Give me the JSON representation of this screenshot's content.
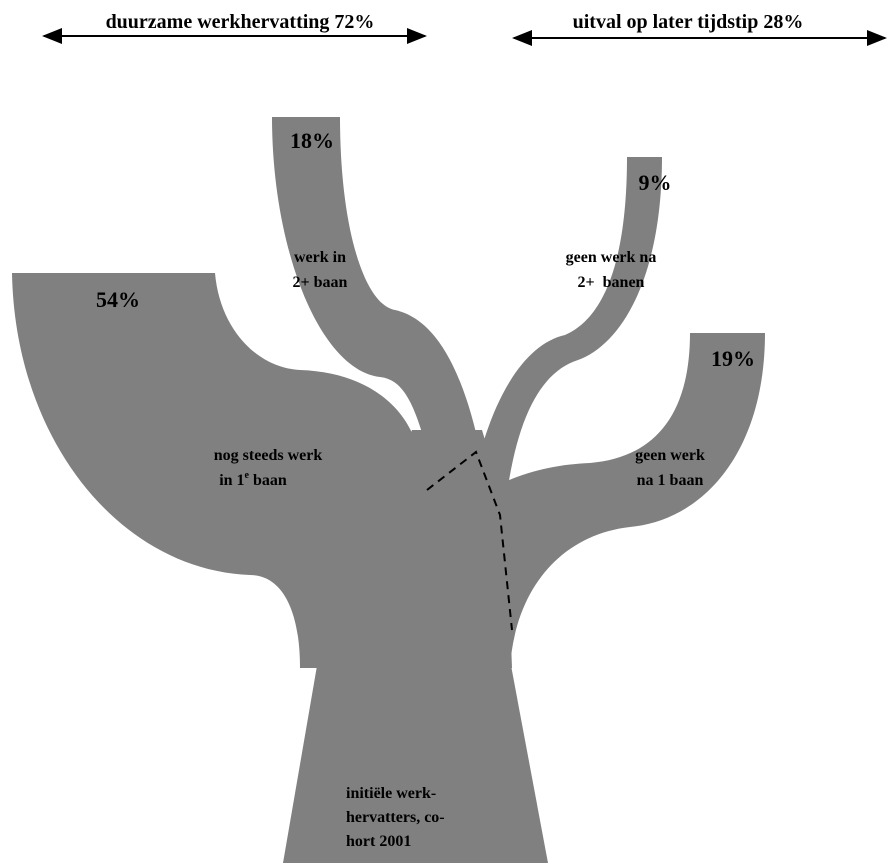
{
  "header": {
    "left": "duurzame werkhervatting 72%",
    "right": "uitval op later tijdstip 28%"
  },
  "branches": {
    "first_job": {
      "percent": "54%",
      "line1": "nog steeds werk",
      "line2": {
        "before": "in 1",
        "sup": "e",
        "after": " baan"
      }
    },
    "more_jobs": {
      "percent": "18%",
      "lines": [
        "werk in",
        "2+ baan"
      ]
    },
    "no_work_more": {
      "percent": "9%",
      "lines": [
        "geen werk na",
        "2+  banen"
      ]
    },
    "no_work_one": {
      "percent": "19%",
      "lines": [
        "geen werk",
        "na 1 baan"
      ]
    }
  },
  "trunk": {
    "lines": [
      "initiële werk-",
      "hervatters, co-",
      "hort 2001"
    ]
  }
}
